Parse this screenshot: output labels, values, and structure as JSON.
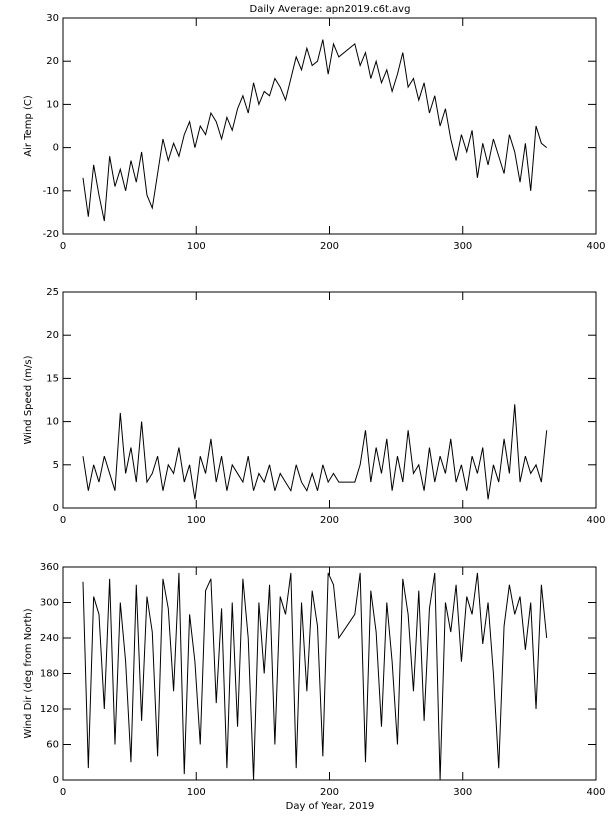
{
  "chart_data": [
    {
      "type": "line",
      "title": "Daily Average: apn2019.c6t.avg",
      "y_label": "Air Temp (C)",
      "color": "#000000",
      "xlim": [
        0,
        400
      ],
      "xticks": [
        0,
        100,
        200,
        300,
        400
      ],
      "ylim": [
        -20,
        30
      ],
      "yticks": [
        -20,
        -10,
        0,
        10,
        20,
        30
      ],
      "x": [
        15,
        19,
        23,
        27,
        31,
        35,
        39,
        43,
        47,
        51,
        55,
        59,
        63,
        67,
        71,
        75,
        79,
        83,
        87,
        91,
        95,
        99,
        103,
        107,
        111,
        115,
        119,
        123,
        127,
        131,
        135,
        139,
        143,
        147,
        151,
        155,
        159,
        163,
        167,
        171,
        175,
        179,
        183,
        187,
        191,
        195,
        199,
        203,
        207,
        219,
        223,
        227,
        231,
        235,
        239,
        243,
        247,
        251,
        255,
        259,
        263,
        267,
        271,
        275,
        279,
        283,
        287,
        291,
        295,
        299,
        303,
        307,
        311,
        315,
        319,
        323,
        327,
        331,
        335,
        339,
        343,
        347,
        351,
        355,
        359,
        363
      ],
      "values": [
        -7,
        -16,
        -4,
        -11,
        -17,
        -2,
        -9,
        -5,
        -10,
        -3,
        -8,
        -1,
        -11,
        -14,
        -6,
        2,
        -3,
        1,
        -2,
        3,
        6,
        0,
        5,
        3,
        8,
        6,
        2,
        7,
        4,
        9,
        12,
        8,
        15,
        10,
        13,
        12,
        16,
        14,
        11,
        16,
        21,
        18,
        23,
        19,
        20,
        25,
        17,
        24,
        21,
        24,
        19,
        22,
        16,
        20,
        15,
        18,
        13,
        17,
        22,
        14,
        16,
        11,
        15,
        8,
        12,
        5,
        9,
        2,
        -3,
        3,
        -1,
        4,
        -7,
        1,
        -4,
        2,
        -2,
        -6,
        3,
        -1,
        -8,
        1,
        -10,
        5,
        1,
        0
      ]
    },
    {
      "type": "line",
      "y_label": "Wind Speed (m/s)",
      "color": "#000000",
      "xlim": [
        0,
        400
      ],
      "xticks": [
        0,
        100,
        200,
        300,
        400
      ],
      "ylim": [
        0,
        25
      ],
      "yticks": [
        0,
        5,
        10,
        15,
        20,
        25
      ],
      "x": [
        15,
        19,
        23,
        27,
        31,
        35,
        39,
        43,
        47,
        51,
        55,
        59,
        63,
        67,
        71,
        75,
        79,
        83,
        87,
        91,
        95,
        99,
        103,
        107,
        111,
        115,
        119,
        123,
        127,
        131,
        135,
        139,
        143,
        147,
        151,
        155,
        159,
        163,
        167,
        171,
        175,
        179,
        183,
        187,
        191,
        195,
        199,
        203,
        207,
        219,
        223,
        227,
        231,
        235,
        239,
        243,
        247,
        251,
        255,
        259,
        263,
        267,
        271,
        275,
        279,
        283,
        287,
        291,
        295,
        299,
        303,
        307,
        311,
        315,
        319,
        323,
        327,
        331,
        335,
        339,
        343,
        347,
        351,
        355,
        359,
        363
      ],
      "values": [
        6,
        2,
        5,
        3,
        6,
        4,
        2,
        11,
        4,
        7,
        3,
        10,
        3,
        4,
        6,
        2,
        5,
        4,
        7,
        3,
        5,
        1,
        6,
        4,
        8,
        3,
        6,
        2,
        5,
        4,
        3,
        6,
        2,
        4,
        3,
        5,
        2,
        4,
        3,
        2,
        5,
        3,
        2,
        4,
        2,
        5,
        3,
        4,
        3,
        3,
        5,
        9,
        3,
        7,
        4,
        8,
        2,
        6,
        3,
        9,
        4,
        5,
        2,
        7,
        3,
        6,
        4,
        8,
        3,
        5,
        2,
        6,
        4,
        7,
        1,
        5,
        3,
        8,
        4,
        12,
        3,
        6,
        4,
        5,
        3,
        9
      ]
    },
    {
      "type": "line",
      "y_label": "Wind Dir (deg from North)",
      "x_label": "Day of Year, 2019",
      "color": "#000000",
      "xlim": [
        0,
        400
      ],
      "xticks": [
        0,
        100,
        200,
        300,
        400
      ],
      "ylim": [
        0,
        360
      ],
      "yticks": [
        0,
        60,
        120,
        180,
        240,
        300,
        360
      ],
      "x": [
        15,
        19,
        23,
        27,
        31,
        35,
        39,
        43,
        47,
        51,
        55,
        59,
        63,
        67,
        71,
        75,
        79,
        83,
        87,
        91,
        95,
        99,
        103,
        107,
        111,
        115,
        119,
        123,
        127,
        131,
        135,
        139,
        143,
        147,
        151,
        155,
        159,
        163,
        167,
        171,
        175,
        179,
        183,
        187,
        191,
        195,
        199,
        203,
        207,
        219,
        223,
        227,
        231,
        235,
        239,
        243,
        247,
        251,
        255,
        259,
        263,
        267,
        271,
        275,
        279,
        283,
        287,
        291,
        295,
        299,
        303,
        307,
        311,
        315,
        319,
        323,
        327,
        331,
        335,
        339,
        343,
        347,
        351,
        355,
        359,
        363
      ],
      "values": [
        335,
        20,
        310,
        280,
        120,
        340,
        60,
        300,
        200,
        30,
        330,
        100,
        310,
        250,
        40,
        340,
        290,
        150,
        350,
        10,
        280,
        200,
        60,
        320,
        340,
        130,
        290,
        20,
        300,
        90,
        340,
        240,
        0,
        300,
        180,
        330,
        60,
        310,
        280,
        350,
        20,
        300,
        150,
        320,
        260,
        40,
        350,
        330,
        240,
        280,
        350,
        30,
        320,
        250,
        90,
        300,
        200,
        60,
        340,
        280,
        150,
        320,
        100,
        290,
        350,
        0,
        300,
        250,
        330,
        200,
        310,
        280,
        350,
        230,
        300,
        180,
        20,
        260,
        330,
        280,
        310,
        220,
        300,
        120,
        330,
        240
      ]
    }
  ]
}
